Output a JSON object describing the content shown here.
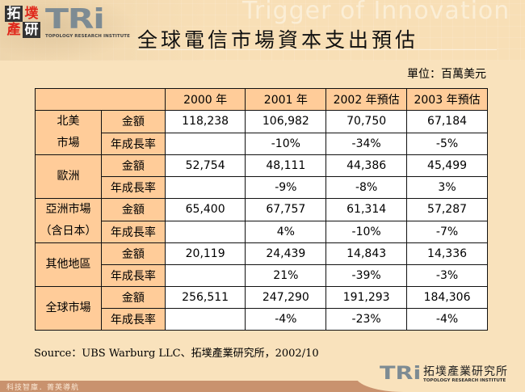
{
  "header": {
    "logo_cn_chars": [
      "拓",
      "墣",
      "產",
      "研"
    ],
    "logo_mark": "TRi",
    "logo_sub": "TOPOLOGY RESEARCH INSTITUTE",
    "tagline": "Trigger of Innovation",
    "title": "全球電信市場資本支出預估"
  },
  "unit_label": "單位：百萬美元",
  "table": {
    "columns": [
      "2000 年",
      "2001 年",
      "2002 年預估",
      "2003 年預估"
    ],
    "metric_labels": {
      "amount": "金額",
      "growth": "年成長率"
    },
    "regions": [
      {
        "name_line1": "北美",
        "name_line2": "市場",
        "amount": [
          "118,238",
          "106,982",
          "70,750",
          "67,184"
        ],
        "growth": [
          "",
          "-10%",
          "-34%",
          "-5%"
        ]
      },
      {
        "name_line1": "歐洲",
        "name_line2": "",
        "amount": [
          "52,754",
          "48,111",
          "44,386",
          "45,499"
        ],
        "growth": [
          "",
          "-9%",
          "-8%",
          "3%"
        ]
      },
      {
        "name_line1": "亞洲市場",
        "name_line2": "（含日本）",
        "amount": [
          "65,400",
          "67,757",
          "61,314",
          "57,287"
        ],
        "growth": [
          "",
          "4%",
          "-10%",
          "-7%"
        ]
      },
      {
        "name_line1": "其他地區",
        "name_line2": "",
        "amount": [
          "20,119",
          "24,439",
          "14,843",
          "14,336"
        ],
        "growth": [
          "",
          "21%",
          "-39%",
          "-3%"
        ]
      },
      {
        "name_line1": "全球市場",
        "name_line2": "",
        "amount": [
          "256,511",
          "247,290",
          "191,293",
          "184,306"
        ],
        "growth": [
          "",
          "-4%",
          "-23%",
          "-4%"
        ]
      }
    ]
  },
  "source": "Source：UBS Warburg LLC、拓墣產業研究所，2002/10",
  "footer": {
    "slogan": "科技智庫．菁英導航",
    "logo_mark": "TRi",
    "logo_cn": "拓墣產業研究所",
    "logo_en": "TOPOLOGY RESEARCH INSTITUTE"
  },
  "colors": {
    "background": "#f9e2bc",
    "header_cell": "#ffcc99",
    "value_cell": "#ffffff",
    "footer_bar": "#c9926e",
    "logo_red": "#e0281c",
    "logo_gray": "#7d8b93"
  }
}
